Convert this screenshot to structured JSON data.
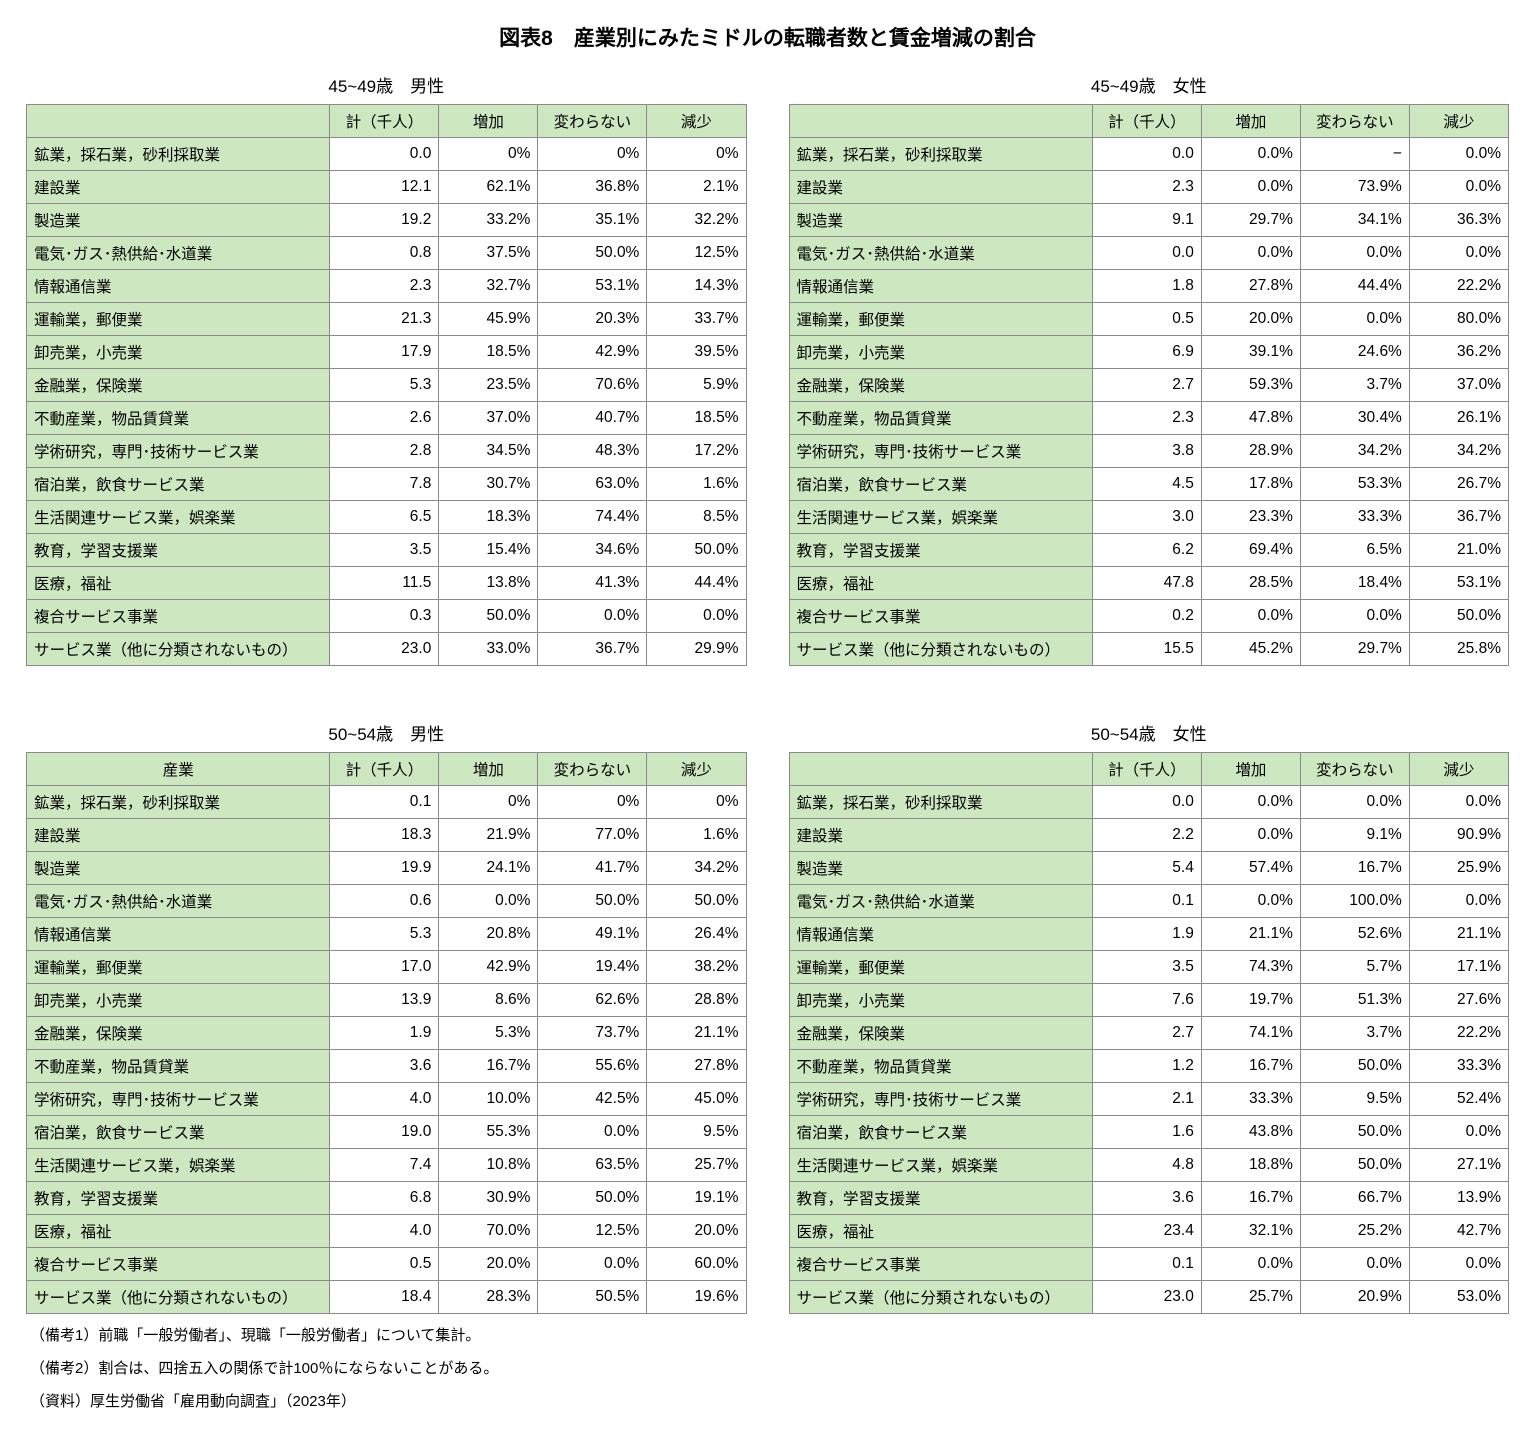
{
  "title": "図表8　産業別にみたミドルの転職者数と賃金増減の割合",
  "tables": [
    {
      "caption": "45~49歳　男性",
      "header": [
        "",
        "計（千人）",
        "増加",
        "変わらない",
        "減少"
      ],
      "rows": [
        [
          "鉱業，採石業，砂利採取業",
          "0.0",
          "0%",
          "0%",
          "0%"
        ],
        [
          "建設業",
          "12.1",
          "62.1%",
          "36.8%",
          "2.1%"
        ],
        [
          "製造業",
          "19.2",
          "33.2%",
          "35.1%",
          "32.2%"
        ],
        [
          "電気･ガス･熱供給･水道業",
          "0.8",
          "37.5%",
          "50.0%",
          "12.5%"
        ],
        [
          "情報通信業",
          "2.3",
          "32.7%",
          "53.1%",
          "14.3%"
        ],
        [
          "運輸業，郵便業",
          "21.3",
          "45.9%",
          "20.3%",
          "33.7%"
        ],
        [
          "卸売業，小売業",
          "17.9",
          "18.5%",
          "42.9%",
          "39.5%"
        ],
        [
          "金融業，保険業",
          "5.3",
          "23.5%",
          "70.6%",
          "5.9%"
        ],
        [
          "不動産業，物品賃貸業",
          "2.6",
          "37.0%",
          "40.7%",
          "18.5%"
        ],
        [
          "学術研究，専門･技術サービス業",
          "2.8",
          "34.5%",
          "48.3%",
          "17.2%"
        ],
        [
          "宿泊業，飲食サービス業",
          "7.8",
          "30.7%",
          "63.0%",
          "1.6%"
        ],
        [
          "生活関連サービス業，娯楽業",
          "6.5",
          "18.3%",
          "74.4%",
          "8.5%"
        ],
        [
          "教育，学習支援業",
          "3.5",
          "15.4%",
          "34.6%",
          "50.0%"
        ],
        [
          "医療，福祉",
          "11.5",
          "13.8%",
          "41.3%",
          "44.4%"
        ],
        [
          "複合サービス事業",
          "0.3",
          "50.0%",
          "0.0%",
          "0.0%"
        ],
        [
          "サービス業（他に分類されないもの）",
          "23.0",
          "33.0%",
          "36.7%",
          "29.9%"
        ]
      ]
    },
    {
      "caption": "45~49歳　女性",
      "header": [
        "",
        "計（千人）",
        "増加",
        "変わらない",
        "減少"
      ],
      "rows": [
        [
          "鉱業，採石業，砂利採取業",
          "0.0",
          "0.0%",
          "−",
          "0.0%"
        ],
        [
          "建設業",
          "2.3",
          "0.0%",
          "73.9%",
          "0.0%"
        ],
        [
          "製造業",
          "9.1",
          "29.7%",
          "34.1%",
          "36.3%"
        ],
        [
          "電気･ガス･熱供給･水道業",
          "0.0",
          "0.0%",
          "0.0%",
          "0.0%"
        ],
        [
          "情報通信業",
          "1.8",
          "27.8%",
          "44.4%",
          "22.2%"
        ],
        [
          "運輸業，郵便業",
          "0.5",
          "20.0%",
          "0.0%",
          "80.0%"
        ],
        [
          "卸売業，小売業",
          "6.9",
          "39.1%",
          "24.6%",
          "36.2%"
        ],
        [
          "金融業，保険業",
          "2.7",
          "59.3%",
          "3.7%",
          "37.0%"
        ],
        [
          "不動産業，物品賃貸業",
          "2.3",
          "47.8%",
          "30.4%",
          "26.1%"
        ],
        [
          "学術研究，専門･技術サービス業",
          "3.8",
          "28.9%",
          "34.2%",
          "34.2%"
        ],
        [
          "宿泊業，飲食サービス業",
          "4.5",
          "17.8%",
          "53.3%",
          "26.7%"
        ],
        [
          "生活関連サービス業，娯楽業",
          "3.0",
          "23.3%",
          "33.3%",
          "36.7%"
        ],
        [
          "教育，学習支援業",
          "6.2",
          "69.4%",
          "6.5%",
          "21.0%"
        ],
        [
          "医療，福祉",
          "47.8",
          "28.5%",
          "18.4%",
          "53.1%"
        ],
        [
          "複合サービス事業",
          "0.2",
          "0.0%",
          "0.0%",
          "50.0%"
        ],
        [
          "サービス業（他に分類されないもの）",
          "15.5",
          "45.2%",
          "29.7%",
          "25.8%"
        ]
      ]
    },
    {
      "caption": "50~54歳　男性",
      "header": [
        "産業",
        "計（千人）",
        "増加",
        "変わらない",
        "減少"
      ],
      "rows": [
        [
          "鉱業，採石業，砂利採取業",
          "0.1",
          "0%",
          "0%",
          "0%"
        ],
        [
          "建設業",
          "18.3",
          "21.9%",
          "77.0%",
          "1.6%"
        ],
        [
          "製造業",
          "19.9",
          "24.1%",
          "41.7%",
          "34.2%"
        ],
        [
          "電気･ガス･熱供給･水道業",
          "0.6",
          "0.0%",
          "50.0%",
          "50.0%"
        ],
        [
          "情報通信業",
          "5.3",
          "20.8%",
          "49.1%",
          "26.4%"
        ],
        [
          "運輸業，郵便業",
          "17.0",
          "42.9%",
          "19.4%",
          "38.2%"
        ],
        [
          "卸売業，小売業",
          "13.9",
          "8.6%",
          "62.6%",
          "28.8%"
        ],
        [
          "金融業，保険業",
          "1.9",
          "5.3%",
          "73.7%",
          "21.1%"
        ],
        [
          "不動産業，物品賃貸業",
          "3.6",
          "16.7%",
          "55.6%",
          "27.8%"
        ],
        [
          "学術研究，専門･技術サービス業",
          "4.0",
          "10.0%",
          "42.5%",
          "45.0%"
        ],
        [
          "宿泊業，飲食サービス業",
          "19.0",
          "55.3%",
          "0.0%",
          "9.5%"
        ],
        [
          "生活関連サービス業，娯楽業",
          "7.4",
          "10.8%",
          "63.5%",
          "25.7%"
        ],
        [
          "教育，学習支援業",
          "6.8",
          "30.9%",
          "50.0%",
          "19.1%"
        ],
        [
          "医療，福祉",
          "4.0",
          "70.0%",
          "12.5%",
          "20.0%"
        ],
        [
          "複合サービス事業",
          "0.5",
          "20.0%",
          "0.0%",
          "60.0%"
        ],
        [
          "サービス業（他に分類されないもの）",
          "18.4",
          "28.3%",
          "50.5%",
          "19.6%"
        ]
      ]
    },
    {
      "caption": "50~54歳　女性",
      "header": [
        "",
        "計（千人）",
        "増加",
        "変わらない",
        "減少"
      ],
      "rows": [
        [
          "鉱業，採石業，砂利採取業",
          "0.0",
          "0.0%",
          "0.0%",
          "0.0%"
        ],
        [
          "建設業",
          "2.2",
          "0.0%",
          "9.1%",
          "90.9%"
        ],
        [
          "製造業",
          "5.4",
          "57.4%",
          "16.7%",
          "25.9%"
        ],
        [
          "電気･ガス･熱供給･水道業",
          "0.1",
          "0.0%",
          "100.0%",
          "0.0%"
        ],
        [
          "情報通信業",
          "1.9",
          "21.1%",
          "52.6%",
          "21.1%"
        ],
        [
          "運輸業，郵便業",
          "3.5",
          "74.3%",
          "5.7%",
          "17.1%"
        ],
        [
          "卸売業，小売業",
          "7.6",
          "19.7%",
          "51.3%",
          "27.6%"
        ],
        [
          "金融業，保険業",
          "2.7",
          "74.1%",
          "3.7%",
          "22.2%"
        ],
        [
          "不動産業，物品賃貸業",
          "1.2",
          "16.7%",
          "50.0%",
          "33.3%"
        ],
        [
          "学術研究，専門･技術サービス業",
          "2.1",
          "33.3%",
          "9.5%",
          "52.4%"
        ],
        [
          "宿泊業，飲食サービス業",
          "1.6",
          "43.8%",
          "50.0%",
          "0.0%"
        ],
        [
          "生活関連サービス業，娯楽業",
          "4.8",
          "18.8%",
          "50.0%",
          "27.1%"
        ],
        [
          "教育，学習支援業",
          "3.6",
          "16.7%",
          "66.7%",
          "13.9%"
        ],
        [
          "医療，福祉",
          "23.4",
          "32.1%",
          "25.2%",
          "42.7%"
        ],
        [
          "複合サービス事業",
          "0.1",
          "0.0%",
          "0.0%",
          "0.0%"
        ],
        [
          "サービス業（他に分類されないもの）",
          "23.0",
          "25.7%",
          "20.9%",
          "53.0%"
        ]
      ]
    }
  ],
  "notes": [
    "（備考1）前職「一般労働者」、現職「一般労働者」について集計。",
    "（備考2）割合は、四捨五入の関係で計100％にならないことがある。",
    "（資料）厚生労働省「雇用動向調査」（2023年）"
  ],
  "colors": {
    "header_fill": "#cde8c0",
    "border": "#8a8a8a"
  }
}
